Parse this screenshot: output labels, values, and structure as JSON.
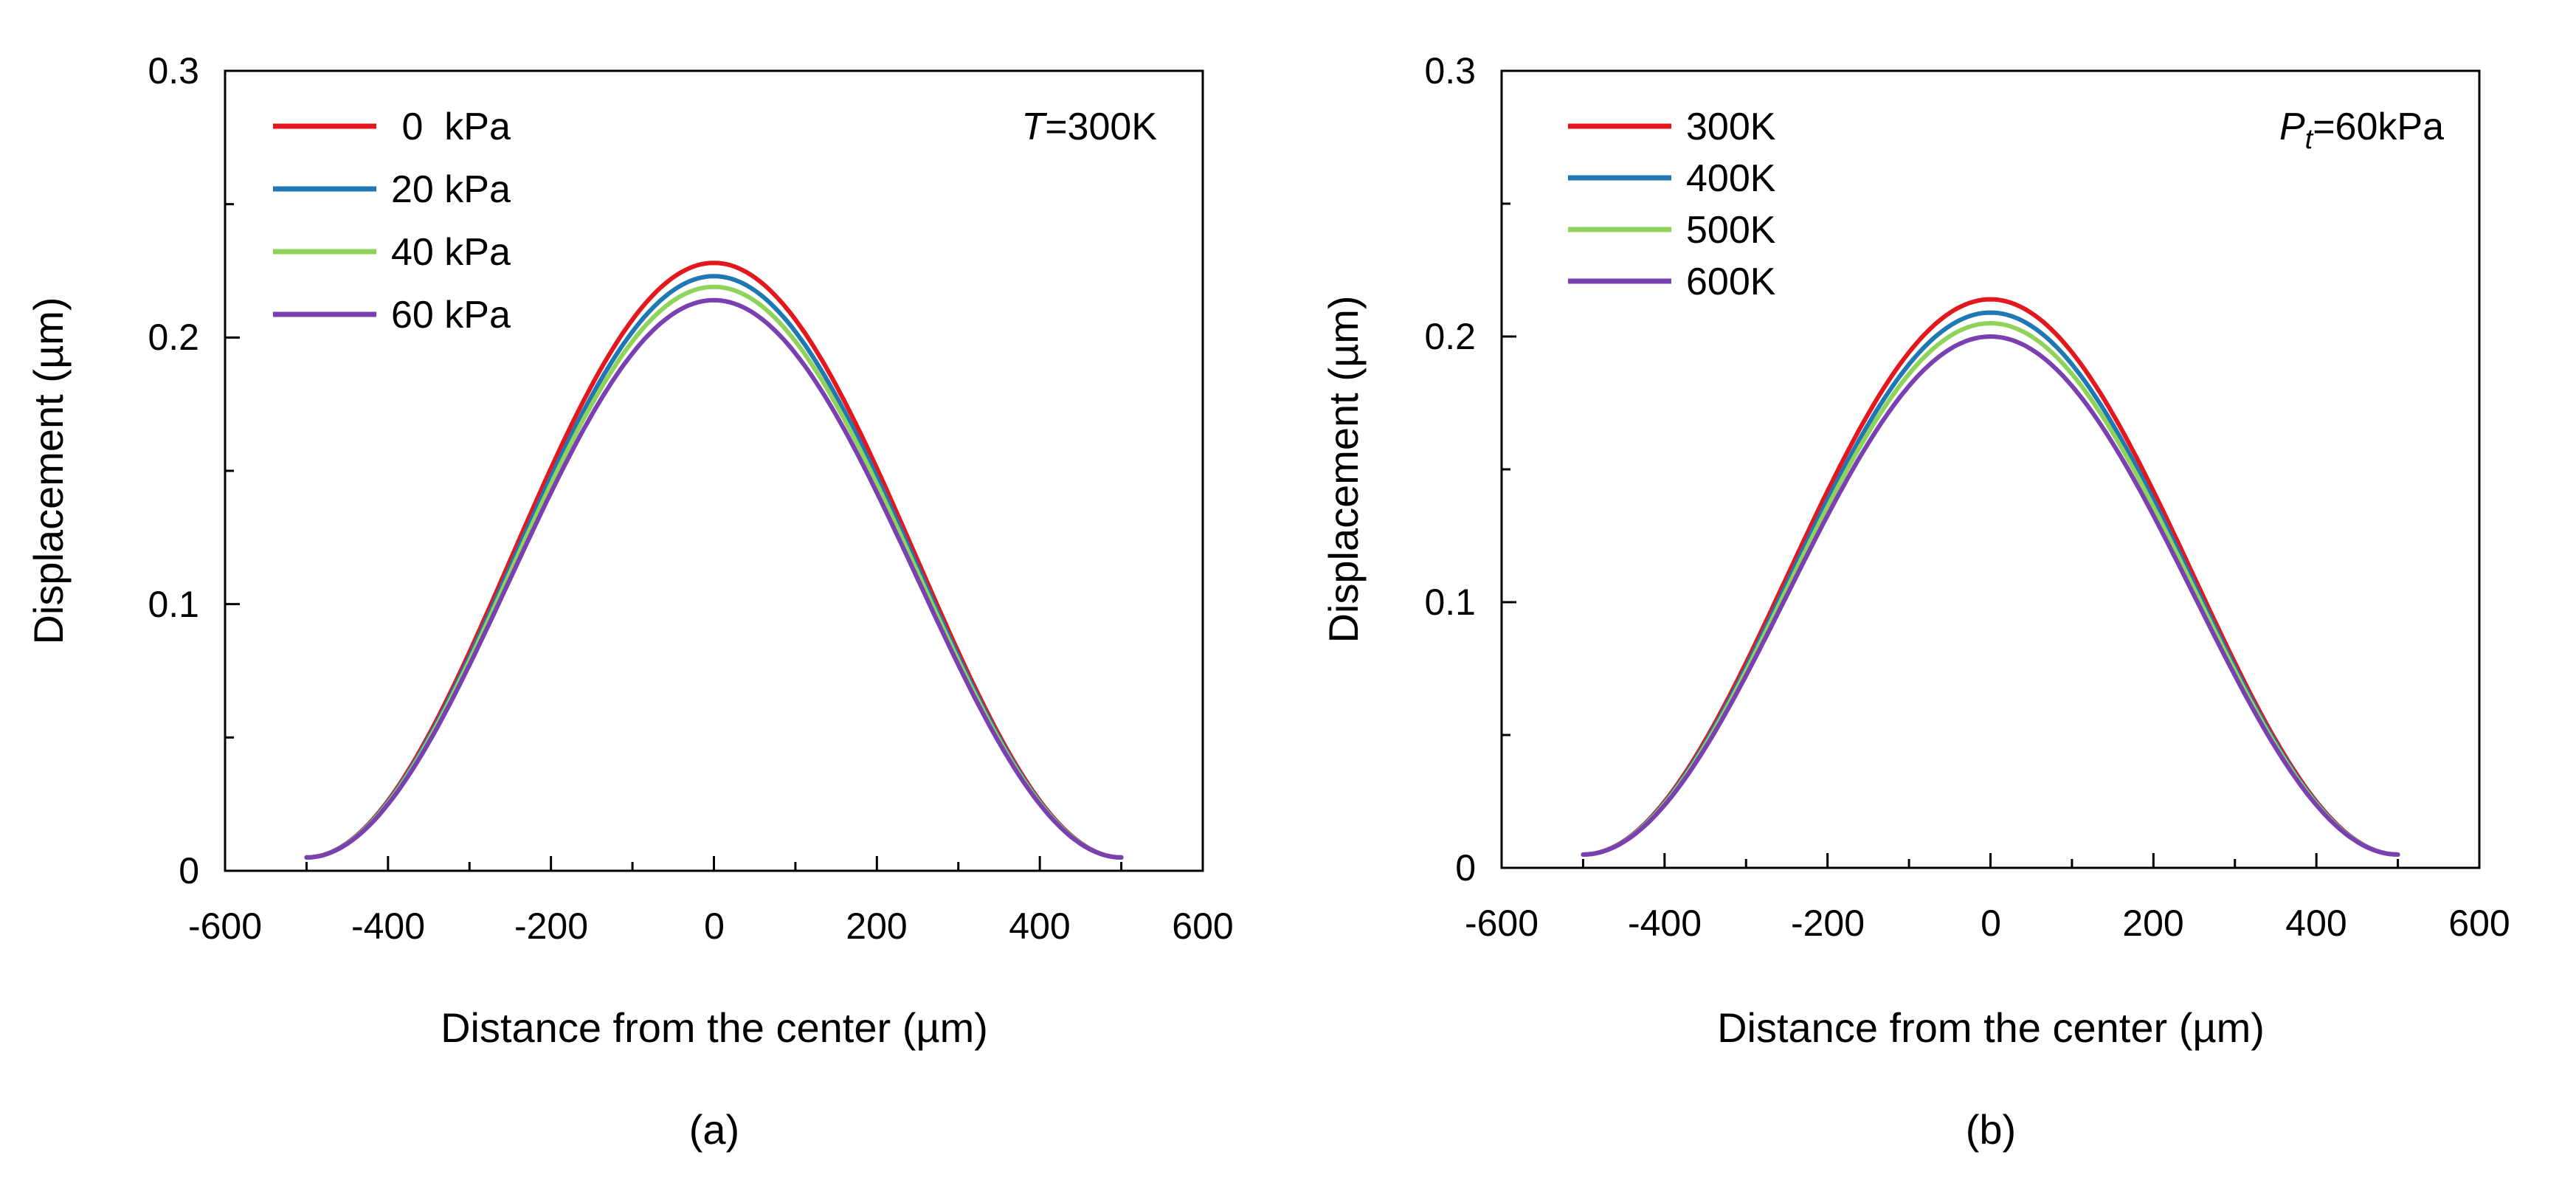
{
  "colors": [
    "#e3171d",
    "#1f78b4",
    "#8fd35b",
    "#7a3fb0"
  ],
  "chart_data": [
    {
      "type": "line",
      "caption": "(a)",
      "xlabel": "Distance from the center (µm)",
      "ylabel": "Displacement (µm)",
      "xlim": [
        -600,
        600
      ],
      "ylim": [
        0,
        0.3
      ],
      "xticks": [
        "-600",
        "-400",
        "-200",
        "0",
        "200",
        "400",
        "600"
      ],
      "yticks": [
        "0",
        "0.1",
        "0.2",
        "0.3"
      ],
      "annotation": {
        "italic": "T",
        "rest": "=300K",
        "sub": ""
      },
      "legend_position": "top-left",
      "x_range": [
        -500,
        500
      ],
      "y_end": 0.005,
      "series": [
        {
          "name": " 0  kPa",
          "peak": 0.228
        },
        {
          "name": "20 kPa",
          "peak": 0.223
        },
        {
          "name": "40 kPa",
          "peak": 0.219
        },
        {
          "name": "60 kPa",
          "peak": 0.214
        }
      ]
    },
    {
      "type": "line",
      "caption": "(b)",
      "xlabel": "Distance from the center (µm)",
      "ylabel": "Displacement (µm)",
      "xlim": [
        -600,
        600
      ],
      "ylim": [
        0,
        0.3
      ],
      "xticks": [
        "-600",
        "-400",
        "-200",
        "0",
        "200",
        "400",
        "600"
      ],
      "yticks": [
        "0",
        "0.1",
        "0.2",
        "0.3"
      ],
      "annotation": {
        "italic": "P",
        "sub": "t",
        "rest": "=60kPa"
      },
      "legend_position": "top-left",
      "x_range": [
        -500,
        500
      ],
      "y_end": 0.005,
      "series": [
        {
          "name": "300K",
          "peak": 0.214
        },
        {
          "name": "400K",
          "peak": 0.209
        },
        {
          "name": "500K",
          "peak": 0.205
        },
        {
          "name": "600K",
          "peak": 0.2
        }
      ]
    }
  ]
}
